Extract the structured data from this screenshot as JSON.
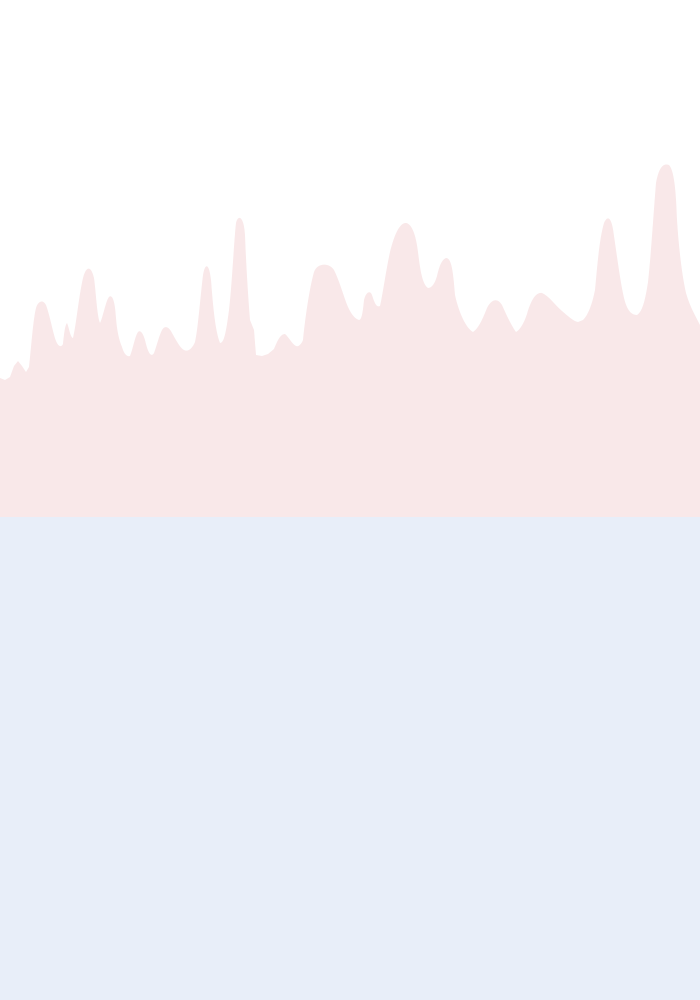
{
  "colors": {
    "background": "#ffffff",
    "upper_band": "#f9e8e9",
    "lower_band": "#e8eef9"
  }
}
